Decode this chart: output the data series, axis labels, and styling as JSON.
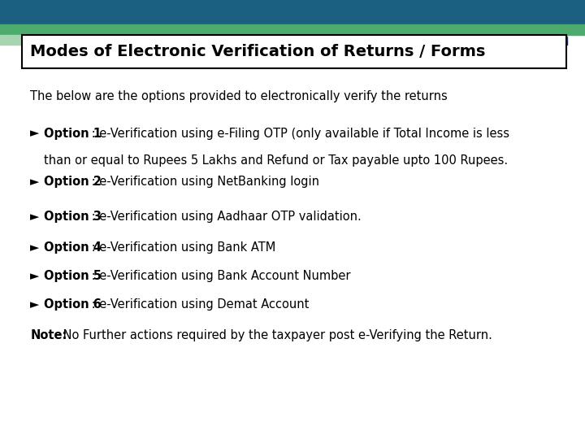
{
  "title": "Modes of Electronic Verification of Returns / Forms",
  "bg_color": "#ffffff",
  "intro_text": "The below are the options provided to electronically verify the returns",
  "options": [
    {
      "label": "Option 1",
      "text_line1": " : e-Verification using e-Filing OTP (only available if Total Income is less",
      "text_line2": "than or equal to Rupees 5 Lakhs and Refund or Tax payable upto 100 Rupees.",
      "multiline": true
    },
    {
      "label": "Option 2",
      "text_line1": " : e-Verification using NetBanking login",
      "text_line2": "",
      "multiline": false
    },
    {
      "label": "Option 3",
      "text_line1": " : e-Verification using Aadhaar OTP validation.",
      "text_line2": "",
      "multiline": false
    },
    {
      "label": "Option 4",
      "text_line1": " : e-Verification using Bank ATM",
      "text_line2": "",
      "multiline": false
    },
    {
      "label": "Option 5",
      "text_line1": " : e-Verification using Bank Account Number",
      "text_line2": "",
      "multiline": false
    },
    {
      "label": "Option 6",
      "text_line1": " : e-Verification using Demat Account",
      "text_line2": "",
      "multiline": false
    }
  ],
  "note_label": "Note:",
  "note_text": " No Further actions required by the taxpayer post e-Verifying the Return.",
  "top_bar_color": "#1b6080",
  "green_stripe_color": "#4dab6e",
  "light_green_color": "#a8d4b0",
  "dark_navy1": "#2c3e75",
  "dark_navy2": "#1c2660",
  "title_fontsize": 14,
  "body_fontsize": 10.5
}
